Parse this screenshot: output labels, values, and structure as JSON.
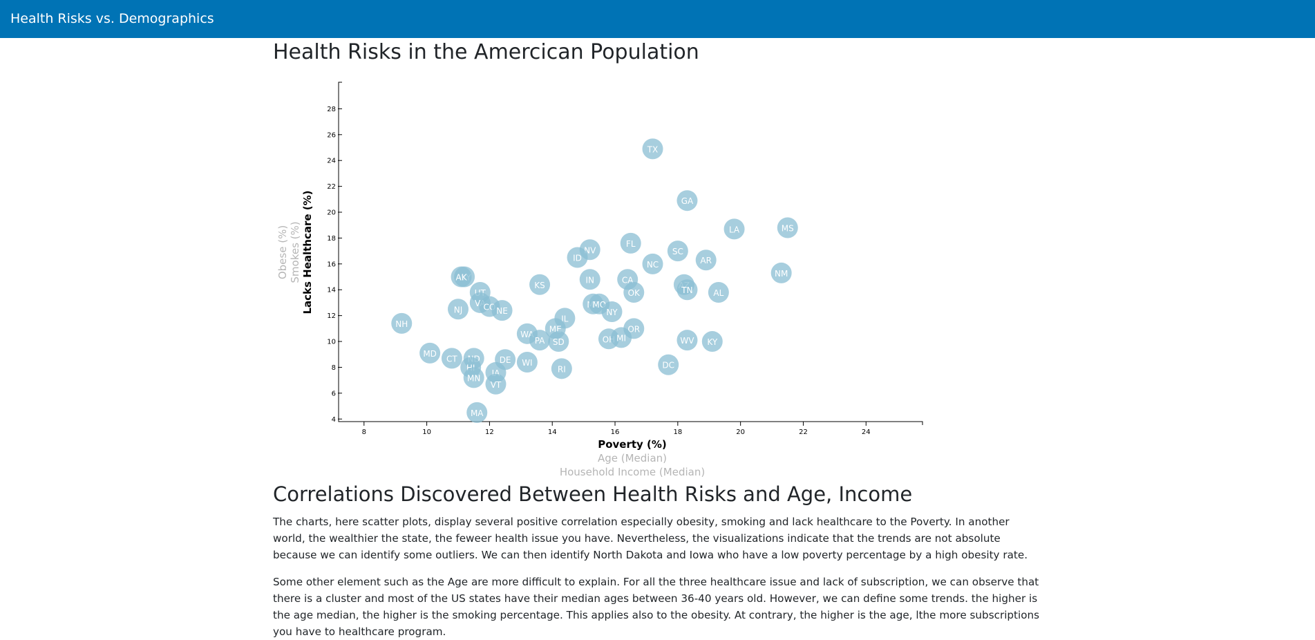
{
  "navbar": {
    "brand": "Health Risks vs. Demographics"
  },
  "page": {
    "title": "Health Risks in the Amercican Population",
    "subtitle": "Correlations Discovered Between Health Risks and Age, Income",
    "paragraphs": [
      "The charts, here scatter plots, display several positive correlation especially obesity, smoking and lack healthcare to the Poverty. In another world, the wealthier the state, the feweer health issue you have. Nevertheless, the visualizations indicate that the trends are not absolute because we can identify some outliers. We can then identify North Dakota and Iowa who have a low poverty percentage by a high obesity rate.",
      "Some other element such as the Age are more difficult to explain. For all the three healthcare issue and lack of subscription, we can observe that there is a cluster and most of the US states have their median ages between 36-40 years old. However, we can define some trends. the higher is the age median, the higher is the smoking percentage. This applies also to the obesity. At contrary, the higher is the age, lthe more subscriptions you have to healthcare program."
    ]
  },
  "chart_data": {
    "type": "scatter",
    "xlabel": "Poverty (%)",
    "ylabel": "Lacks Healthcare (%)",
    "x_axis_options": [
      {
        "label": "Poverty (%)",
        "active": true
      },
      {
        "label": "Age (Median)",
        "active": false
      },
      {
        "label": "Household Income (Median)",
        "active": false
      }
    ],
    "y_axis_options": [
      {
        "label": "Lacks Healthcare (%)",
        "active": true
      },
      {
        "label": "Smokes (%)",
        "active": false
      },
      {
        "label": "Obese (%)",
        "active": false
      }
    ],
    "xlim": [
      7.3,
      25.8
    ],
    "ylim": [
      3.8,
      30.0
    ],
    "x_ticks": [
      8,
      10,
      12,
      14,
      16,
      18,
      20,
      22,
      24
    ],
    "y_ticks": [
      4,
      6,
      8,
      10,
      12,
      14,
      16,
      18,
      20,
      22,
      24,
      26,
      28
    ],
    "colors": {
      "marker": "#89bdd3",
      "marker_text": "#ffffff",
      "navbar": "#0073b5",
      "inactive_label": "#b5b5b5"
    },
    "points": [
      {
        "abbr": "TX",
        "x": 17.2,
        "y": 24.9
      },
      {
        "abbr": "GA",
        "x": 18.3,
        "y": 20.9
      },
      {
        "abbr": "LA",
        "x": 19.8,
        "y": 18.7
      },
      {
        "abbr": "MS",
        "x": 21.5,
        "y": 18.8
      },
      {
        "abbr": "FL",
        "x": 16.5,
        "y": 17.6
      },
      {
        "abbr": "NV",
        "x": 15.2,
        "y": 17.1
      },
      {
        "abbr": "SC",
        "x": 18.0,
        "y": 17.0
      },
      {
        "abbr": "ID",
        "x": 14.8,
        "y": 16.5
      },
      {
        "abbr": "AR",
        "x": 18.9,
        "y": 16.3
      },
      {
        "abbr": "NC",
        "x": 17.2,
        "y": 16.0
      },
      {
        "abbr": "NM",
        "x": 21.3,
        "y": 15.3
      },
      {
        "abbr": "WY",
        "x": 11.2,
        "y": 15.0
      },
      {
        "abbr": "AK",
        "x": 11.1,
        "y": 15.0
      },
      {
        "abbr": "KS",
        "x": 13.6,
        "y": 14.4
      },
      {
        "abbr": "IN",
        "x": 15.2,
        "y": 14.8
      },
      {
        "abbr": "CA",
        "x": 16.4,
        "y": 14.8
      },
      {
        "abbr": "AZ",
        "x": 18.2,
        "y": 14.4
      },
      {
        "abbr": "TN",
        "x": 18.3,
        "y": 14.0
      },
      {
        "abbr": "OK",
        "x": 16.6,
        "y": 13.8
      },
      {
        "abbr": "AL",
        "x": 19.3,
        "y": 13.8
      },
      {
        "abbr": "UT",
        "x": 11.7,
        "y": 13.8
      },
      {
        "abbr": "VA",
        "x": 11.7,
        "y": 13.0
      },
      {
        "abbr": "CO",
        "x": 12.0,
        "y": 12.7
      },
      {
        "abbr": "NE",
        "x": 12.4,
        "y": 12.4
      },
      {
        "abbr": "NJ",
        "x": 11.0,
        "y": 12.5
      },
      {
        "abbr": "MT",
        "x": 15.3,
        "y": 12.9
      },
      {
        "abbr": "MO",
        "x": 15.5,
        "y": 12.9
      },
      {
        "abbr": "NY",
        "x": 15.9,
        "y": 12.3
      },
      {
        "abbr": "IL",
        "x": 14.4,
        "y": 11.8
      },
      {
        "abbr": "NH",
        "x": 9.2,
        "y": 11.4
      },
      {
        "abbr": "ME",
        "x": 14.1,
        "y": 11.0
      },
      {
        "abbr": "OR",
        "x": 16.6,
        "y": 11.0
      },
      {
        "abbr": "WA",
        "x": 13.2,
        "y": 10.6
      },
      {
        "abbr": "PA",
        "x": 13.6,
        "y": 10.1
      },
      {
        "abbr": "SD",
        "x": 14.2,
        "y": 10.0
      },
      {
        "abbr": "OH",
        "x": 15.8,
        "y": 10.2
      },
      {
        "abbr": "MI",
        "x": 16.2,
        "y": 10.3
      },
      {
        "abbr": "WV",
        "x": 18.3,
        "y": 10.1
      },
      {
        "abbr": "KY",
        "x": 19.1,
        "y": 10.0
      },
      {
        "abbr": "MD",
        "x": 10.1,
        "y": 9.1
      },
      {
        "abbr": "CT",
        "x": 10.8,
        "y": 8.7
      },
      {
        "abbr": "ND",
        "x": 11.5,
        "y": 8.7
      },
      {
        "abbr": "DE",
        "x": 12.5,
        "y": 8.6
      },
      {
        "abbr": "WI",
        "x": 13.2,
        "y": 8.4
      },
      {
        "abbr": "DC",
        "x": 17.7,
        "y": 8.2
      },
      {
        "abbr": "RI",
        "x": 14.3,
        "y": 7.9
      },
      {
        "abbr": "HI",
        "x": 11.4,
        "y": 8.0
      },
      {
        "abbr": "IA",
        "x": 12.2,
        "y": 7.6
      },
      {
        "abbr": "MN",
        "x": 11.5,
        "y": 7.2
      },
      {
        "abbr": "VT",
        "x": 12.2,
        "y": 6.7
      },
      {
        "abbr": "MA",
        "x": 11.6,
        "y": 4.5
      }
    ]
  }
}
